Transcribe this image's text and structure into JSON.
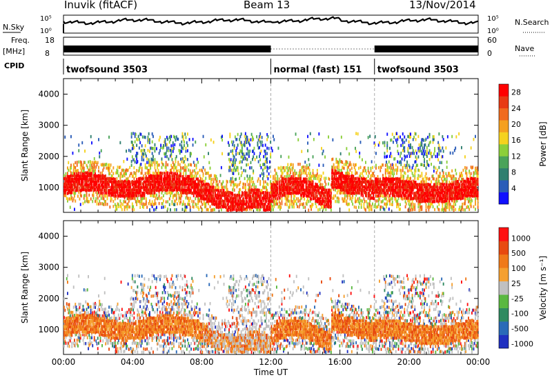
{
  "header": {
    "station": "Inuvik (fitACF)",
    "beam": "Beam 13",
    "date": "13/Nov/2014"
  },
  "nsky_panel": {
    "left_label": "N.Sky",
    "right_label": "N.Search",
    "left_ticks": [
      "10^5",
      "10^0"
    ],
    "right_ticks": [
      "10^5",
      "10^0"
    ]
  },
  "freq_panel": {
    "left_label_1": "Freq.",
    "left_label_2": "[MHz]",
    "left_ticks": [
      "18",
      "8"
    ],
    "right_label": "Nave",
    "right_ticks": [
      "60",
      "0"
    ]
  },
  "cpid_panel": {
    "label": "CPID",
    "segments": [
      {
        "name": "twofsound 3503",
        "start_hour": 0,
        "end_hour": 12
      },
      {
        "name": "normal (fast) 151",
        "start_hour": 12,
        "end_hour": 18
      },
      {
        "name": "twofsound 3503",
        "start_hour": 18,
        "end_hour": 24
      }
    ]
  },
  "chart_data": [
    {
      "type": "heatmap",
      "title": "",
      "ylabel": "Slant Range [km]",
      "xlabel": "",
      "xlim_hours": [
        0,
        24
      ],
      "ylim": [
        200,
        4500
      ],
      "yticks": [
        1000,
        2000,
        3000,
        4000
      ],
      "colorbar": {
        "label": "Power [dB]",
        "ticks": [
          "4",
          "8",
          "12",
          "16",
          "20",
          "24",
          "28"
        ],
        "colors": [
          "#1010ff",
          "#2a5cb8",
          "#2f7f6f",
          "#4aa35a",
          "#8ccf3a",
          "#f5d21e",
          "#f5a01e",
          "#f06b1e",
          "#e83a14",
          "#ff0000"
        ]
      }
    },
    {
      "type": "heatmap",
      "title": "",
      "ylabel": "Slant Range [km]",
      "xlabel": "Time UT",
      "xlim_hours": [
        0,
        24
      ],
      "ylim": [
        200,
        4500
      ],
      "yticks": [
        1000,
        2000,
        3000,
        4000
      ],
      "xticks": [
        "00:00",
        "04:00",
        "08:00",
        "12:00",
        "16:00",
        "20:00",
        "00:00"
      ],
      "colorbar": {
        "label": "Velocity [m s⁻¹]",
        "ticks": [
          "1000",
          "500",
          "100",
          "25",
          "-25",
          "-100",
          "-500",
          "-1000"
        ],
        "colors": [
          "#2030c0",
          "#2a6ab8",
          "#2f8a60",
          "#5ab840",
          "#c0c0c0",
          "#f5a030",
          "#f07a1a",
          "#e84a10",
          "#ff1010"
        ]
      }
    }
  ]
}
